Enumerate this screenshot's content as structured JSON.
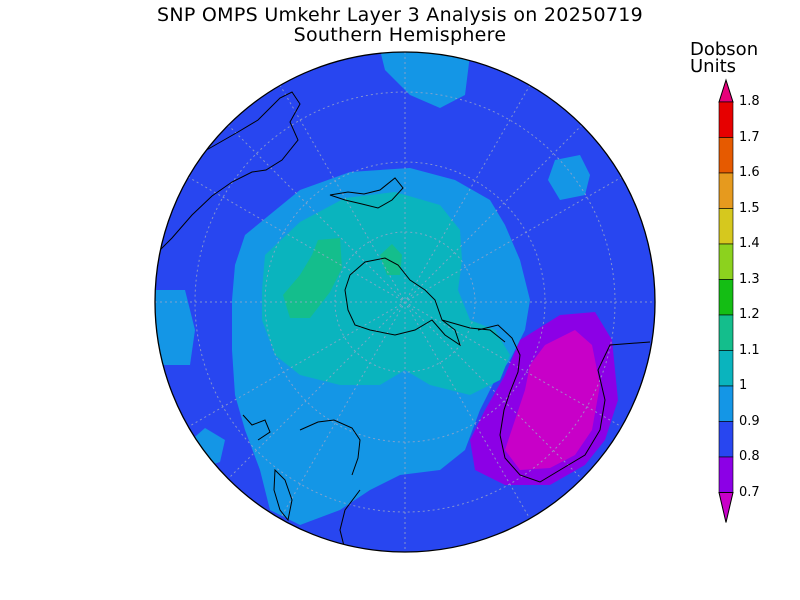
{
  "title": {
    "line1": "SNP OMPS Umkehr Layer 3 Analysis on 20250719",
    "line2": "Southern Hemisphere"
  },
  "colorbar": {
    "units_line1": "Dobson",
    "units_line2": "Units",
    "ticks": [
      "1.8",
      "1.7",
      "1.6",
      "1.5",
      "1.4",
      "1.3",
      "1.2",
      "1.1",
      "1",
      "0.9",
      "0.8",
      "0.7"
    ],
    "bin_colors": [
      "#e6007a",
      "#e60000",
      "#e65a00",
      "#e69a1e",
      "#d6c81e",
      "#8cd21e",
      "#14be14",
      "#14be8c",
      "#0ab4be",
      "#1496e6",
      "#2846f0",
      "#8c00e6",
      "#c800c8"
    ]
  },
  "map_colors": {
    "ocean_base": "#2846f0",
    "contour_0_9_1_0": "#1496e6",
    "contour_1_0_1_1": "#0ab4be",
    "contour_1_1_1_2": "#14be8c",
    "contour_0_7_0_8": "#8c00e6",
    "contour_lt_0_7": "#c800c8"
  }
}
